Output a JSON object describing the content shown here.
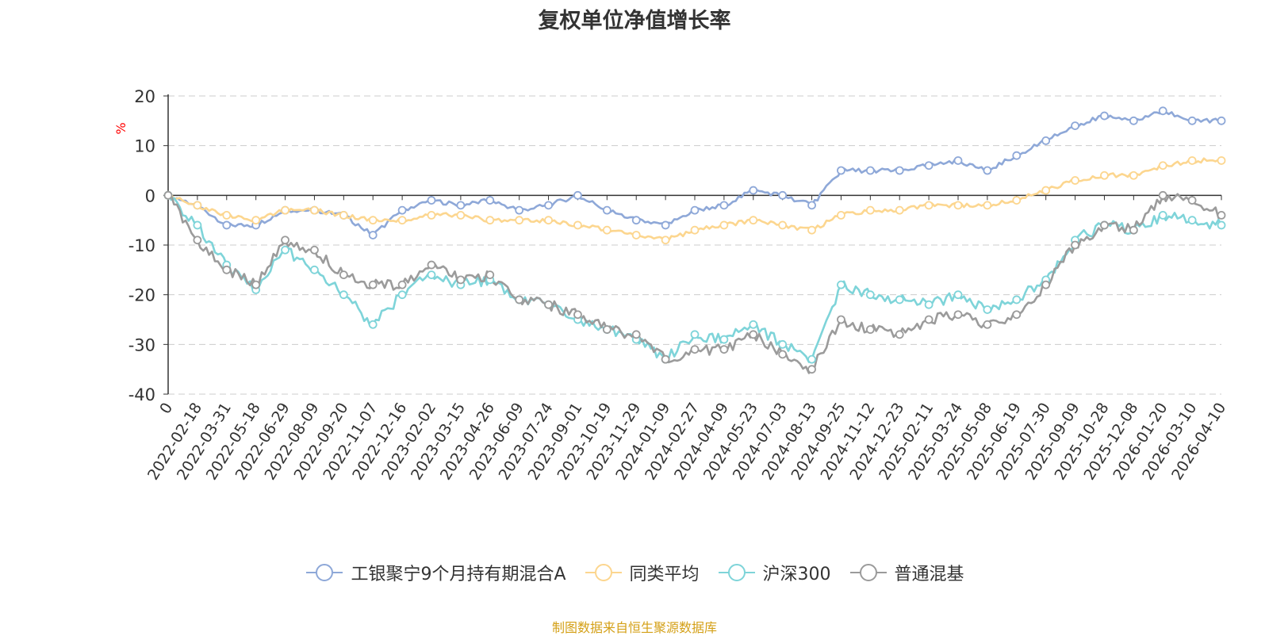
{
  "chart_data": {
    "type": "line",
    "title": "复权单位净值增长率",
    "ylabel": "%",
    "xlabel": "",
    "ylim": [
      -40,
      20
    ],
    "yticks": [
      20,
      10,
      0,
      -10,
      -20,
      -30,
      -40
    ],
    "grid": true,
    "legend_position": "bottom",
    "categories": [
      "0",
      "2022-02-18",
      "2022-03-31",
      "2022-05-18",
      "2022-06-29",
      "2022-08-09",
      "2022-09-20",
      "2022-11-07",
      "2022-12-16",
      "2023-02-02",
      "2023-03-15",
      "2023-04-26",
      "2023-06-09",
      "2023-07-24",
      "2023-09-01",
      "2023-10-19",
      "2023-11-29",
      "2024-01-09",
      "2024-02-27",
      "2024-04-09",
      "2024-05-23",
      "2024-07-03",
      "2024-08-13",
      "2024-09-25",
      "2024-11-12",
      "2024-12-23",
      "2025-02-11",
      "2025-03-24",
      "2025-05-08",
      "2025-06-19",
      "2025-07-30",
      "2025-09-09",
      "2025-10-28",
      "2025-12-08",
      "2026-01-20",
      "2026-03-10",
      "2026-04-10"
    ],
    "series": [
      {
        "name": "工银聚宁9个月持有期混合A",
        "color": "#8ea8d8",
        "values": [
          0,
          -2,
          -6,
          -6,
          -3,
          -3,
          -4,
          -8,
          -3,
          -1,
          -2,
          -1,
          -3,
          -2,
          0,
          -3,
          -5,
          -6,
          -3,
          -2,
          1,
          0,
          -2,
          5,
          5,
          5,
          6,
          7,
          5,
          8,
          11,
          14,
          16,
          15,
          17,
          15,
          15
        ]
      },
      {
        "name": "同类平均",
        "color": "#fcd68f",
        "values": [
          0,
          -2,
          -4,
          -5,
          -3,
          -3,
          -4,
          -5,
          -5,
          -4,
          -4,
          -5,
          -5,
          -5,
          -6,
          -7,
          -8,
          -9,
          -7,
          -6,
          -5,
          -6,
          -7,
          -4,
          -3,
          -3,
          -2,
          -2,
          -2,
          -1,
          1,
          3,
          4,
          4,
          6,
          7,
          7
        ]
      },
      {
        "name": "沪深300",
        "color": "#7ed4d9",
        "values": [
          0,
          -6,
          -14,
          -19,
          -11,
          -15,
          -20,
          -26,
          -20,
          -16,
          -18,
          -17,
          -21,
          -22,
          -25,
          -27,
          -29,
          -33,
          -28,
          -29,
          -26,
          -30,
          -33,
          -18,
          -20,
          -21,
          -22,
          -20,
          -23,
          -21,
          -17,
          -9,
          -6,
          -7,
          -4,
          -5,
          -6
        ]
      },
      {
        "name": "普通混基",
        "color": "#9b9b9b",
        "values": [
          0,
          -9,
          -15,
          -18,
          -9,
          -11,
          -16,
          -18,
          -18,
          -14,
          -17,
          -16,
          -21,
          -22,
          -24,
          -27,
          -28,
          -33,
          -31,
          -31,
          -28,
          -32,
          -35,
          -25,
          -27,
          -28,
          -25,
          -24,
          -26,
          -24,
          -18,
          -10,
          -6,
          -7,
          0,
          -1,
          -4
        ]
      }
    ]
  },
  "legend_labels": [
    "工银聚宁9个月持有期混合A",
    "同类平均",
    "沪深300",
    "普通混基"
  ],
  "source_note": "制图数据来自恒生聚源数据库",
  "y_unit_color": "#ff0000",
  "source_color": "#d4a017"
}
